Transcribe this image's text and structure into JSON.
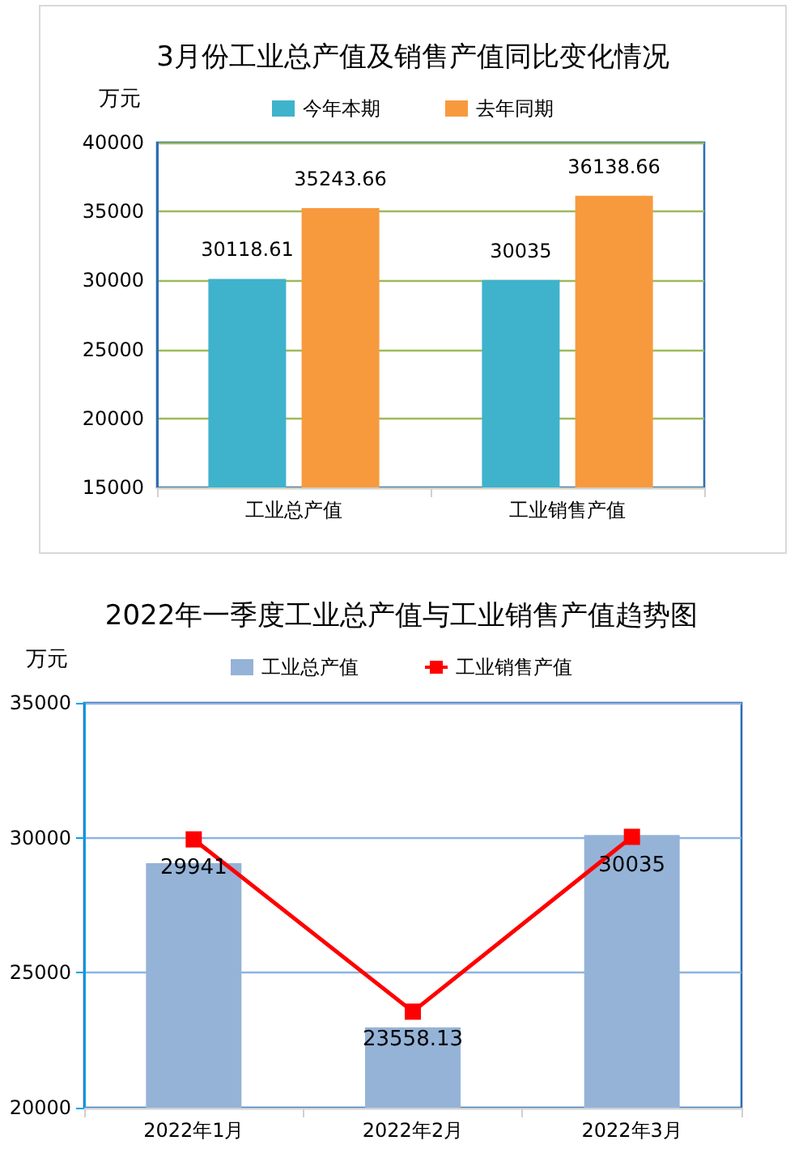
{
  "chart_data": [
    {
      "type": "bar",
      "title": "3月份工业总产值及销售产值同比变化情况",
      "ylabel": "万元",
      "categories": [
        "工业总产值",
        "工业销售产值"
      ],
      "series": [
        {
          "name": "今年本期",
          "color": "#3fb2cc",
          "values": [
            30118.61,
            30035
          ]
        },
        {
          "name": "去年同期",
          "color": "#f79a3e",
          "values": [
            35243.66,
            36138.66
          ]
        }
      ],
      "ylim": [
        15000,
        40000
      ],
      "yticks": [
        15000,
        20000,
        25000,
        30000,
        35000,
        40000
      ],
      "grid": "y",
      "legend": "top",
      "data_labels": true
    },
    {
      "type": "bar",
      "title": "2022年一季度工业总产值与工业销售产值趋势图",
      "ylabel": "万元",
      "categories": [
        "2022年1月",
        "2022年2月",
        "2022年3月"
      ],
      "series": [
        {
          "name": "工业总产值",
          "type": "bar",
          "color": "#95b3d7",
          "values": [
            29060,
            22980,
            30100
          ]
        },
        {
          "name": "工业销售产值",
          "type": "line",
          "color": "#ff0000",
          "values": [
            29941,
            23558.13,
            30035
          ],
          "value_labels": [
            "29941",
            "23558.13",
            "30035"
          ]
        }
      ],
      "ylim": [
        20000,
        35000
      ],
      "yticks": [
        20000,
        25000,
        30000,
        35000
      ],
      "grid": "y",
      "legend": "top",
      "marker": "square"
    }
  ]
}
